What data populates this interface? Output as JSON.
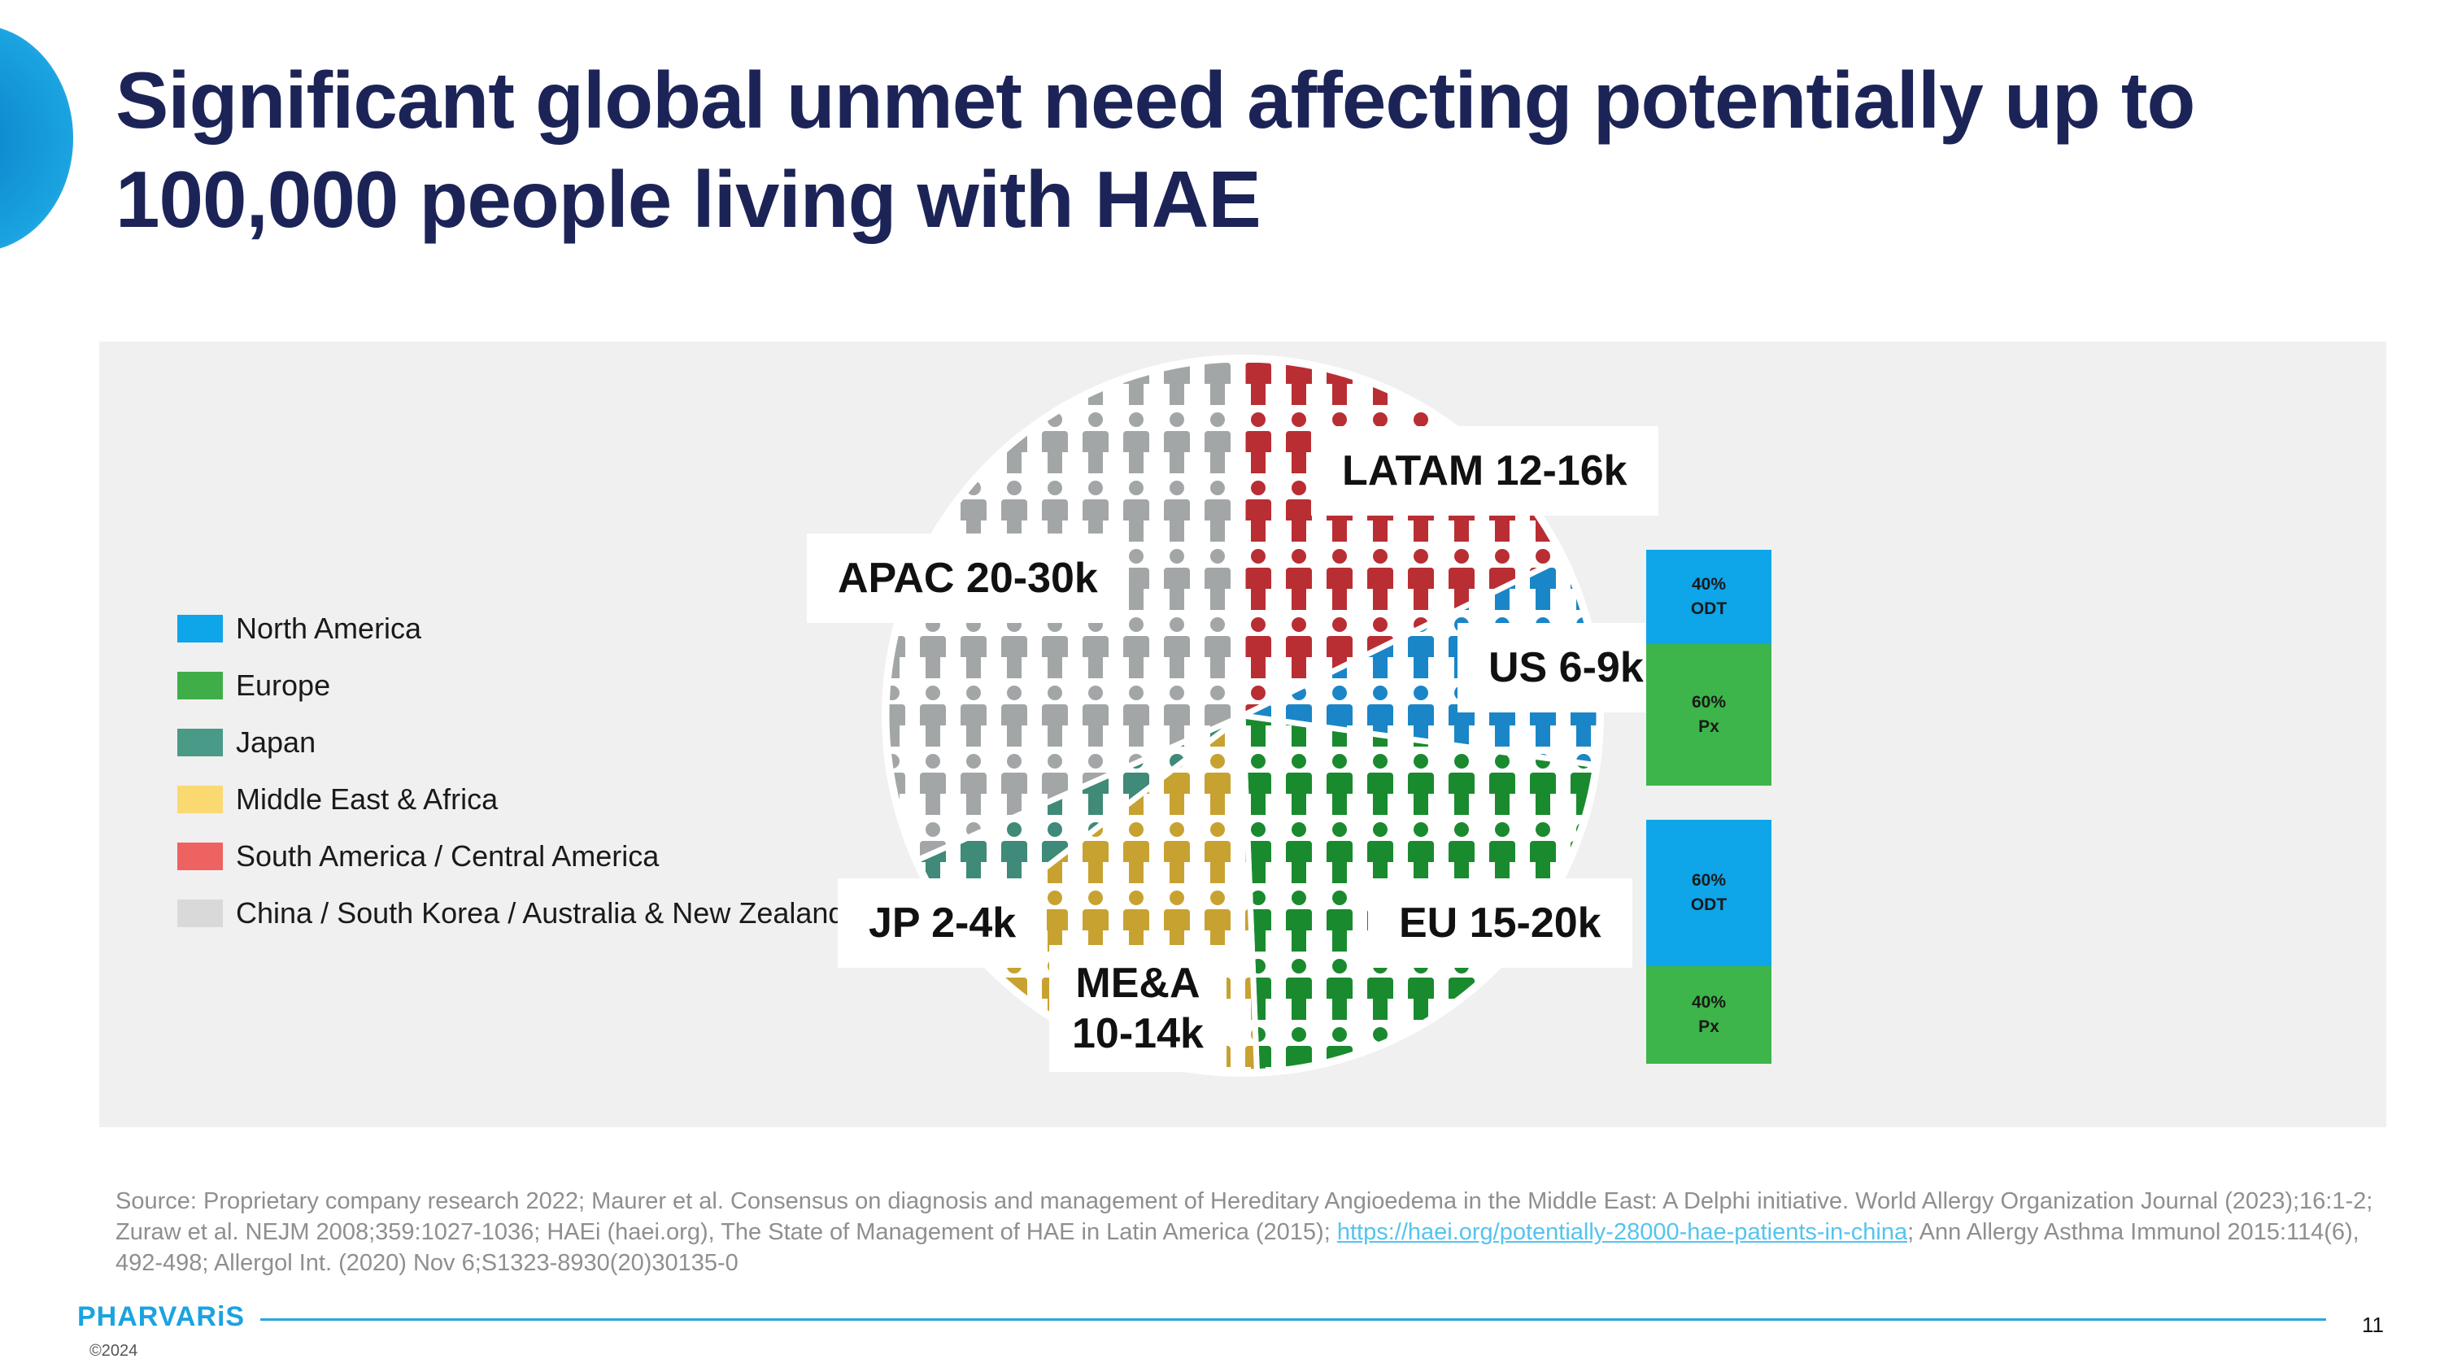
{
  "title": "Significant global unmet need affecting potentially up to 100,000 people living with HAE",
  "legend": [
    {
      "label": "North America",
      "color": "#0ea5e9"
    },
    {
      "label": "Europe",
      "color": "#3fae49"
    },
    {
      "label": "Japan",
      "color": "#4a9a88"
    },
    {
      "label": "Middle East & Africa",
      "color": "#fbd971"
    },
    {
      "label": "South America / Central America",
      "color": "#ef6262"
    },
    {
      "label": "China / South Korea / Australia & New Zealand",
      "color": "#d9d9d9"
    }
  ],
  "chart_data": {
    "type": "pie",
    "icon": "person-icon",
    "slices": [
      {
        "label": "LATAM 12-16k",
        "min_k": 12,
        "max_k": 16,
        "color": "#b92e33"
      },
      {
        "label": "US 6-9k",
        "min_k": 6,
        "max_k": 9,
        "color": "#1a86c7"
      },
      {
        "label": "EU 15-20k",
        "min_k": 15,
        "max_k": 20,
        "color": "#1a8a2e"
      },
      {
        "label": "ME&A 10-14k",
        "min_k": 10,
        "max_k": 14,
        "color": "#c8a231"
      },
      {
        "label": "JP 2-4k",
        "min_k": 2,
        "max_k": 4,
        "color": "#3f8a78"
      },
      {
        "label": "APAC 20-30k",
        "min_k": 20,
        "max_k": 30,
        "color": "#a3a6a7"
      }
    ],
    "labels": {
      "latam": "LATAM 12-16k",
      "us": "US 6-9k",
      "eu": "EU 15-20k",
      "mea_line1": "ME&A",
      "mea_line2": "10-14k",
      "jp": "JP 2-4k",
      "apac": "APAC 20-30k"
    },
    "stacked_bars": [
      {
        "region": "North America",
        "segments": [
          {
            "pct": "40%",
            "label": "ODT",
            "value": 40,
            "color": "#0ea5e9"
          },
          {
            "pct": "60%",
            "label": "Px",
            "value": 60,
            "color": "#3db54a"
          }
        ]
      },
      {
        "region": "Europe",
        "segments": [
          {
            "pct": "60%",
            "label": "ODT",
            "value": 60,
            "color": "#0ea5e9"
          },
          {
            "pct": "40%",
            "label": "Px",
            "value": 40,
            "color": "#3db54a"
          }
        ]
      }
    ]
  },
  "source": {
    "before_link": "Source: Proprietary company research 2022; Maurer et al. Consensus on diagnosis and management of Hereditary Angioedema in the Middle East: A Delphi initiative. World Allergy Organization Journal (2023);16:1-2; Zuraw et al. NEJM 2008;359:1027-1036; HAEi (haei.org), The State of Management of HAE in Latin America (2015); ",
    "link": "https://haei.org/potentially-28000-hae-patients-in-china",
    "after_link": "; Ann Allergy Asthma Immunol 2015:114(6), 492-498; Allergol Int. (2020) Nov 6;S1323-8930(20)30135-0"
  },
  "footer": {
    "logo": "PHARVARiS",
    "page_number": "11",
    "copyright": "©2024"
  }
}
